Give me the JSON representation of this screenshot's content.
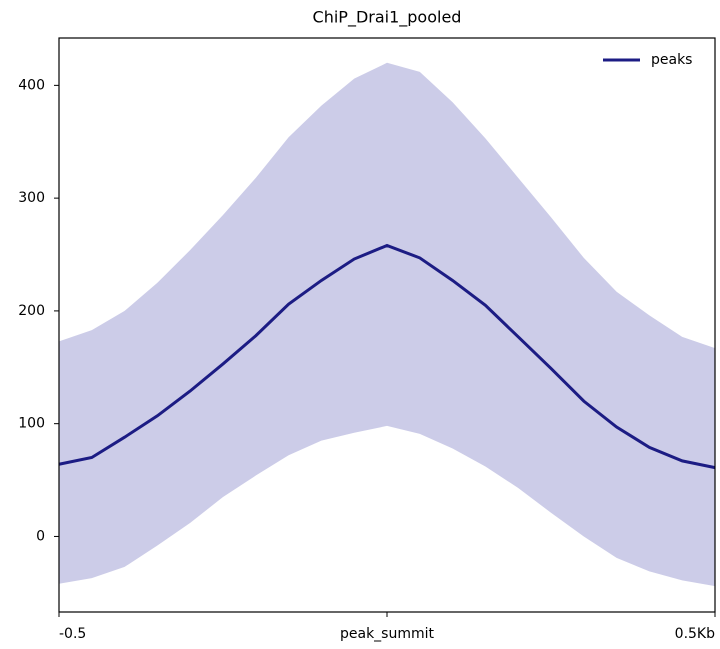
{
  "chart_data": {
    "type": "line",
    "title": "ChiP_Drai1_pooled",
    "x": [
      -0.5,
      -0.45,
      -0.4,
      -0.35,
      -0.3,
      -0.25,
      -0.2,
      -0.15,
      -0.1,
      -0.05,
      0,
      0.05,
      0.1,
      0.15,
      0.2,
      0.25,
      0.3,
      0.35,
      0.4,
      0.45,
      0.5
    ],
    "series": [
      {
        "name": "peaks",
        "color": "#1c1c84",
        "band_color": "#cccce8",
        "values": [
          64,
          70,
          88,
          107,
          129,
          153,
          178,
          206,
          227,
          246,
          258,
          247,
          227,
          205,
          177,
          149,
          120,
          97,
          79,
          67,
          61
        ],
        "upper": [
          173,
          183,
          200,
          225,
          254,
          285,
          318,
          354,
          382,
          406,
          420,
          412,
          385,
          353,
          318,
          283,
          247,
          217,
          196,
          177,
          167
        ],
        "lower": [
          -42,
          -37,
          -27,
          -8,
          12,
          35,
          54,
          72,
          85,
          92,
          98,
          91,
          78,
          62,
          43,
          21,
          0,
          -19,
          -31,
          -39,
          -44
        ]
      }
    ],
    "xlim": [
      -0.5,
      0.5
    ],
    "xticks": [
      -0.5,
      {
        "value": 0,
        "label": "peak_summit"
      },
      {
        "value": 0.5,
        "label": "0.5Kb"
      }
    ],
    "ylim": [
      -67,
      442
    ],
    "yticks": [
      0,
      100,
      200,
      300,
      400
    ],
    "legend": "upper right"
  }
}
